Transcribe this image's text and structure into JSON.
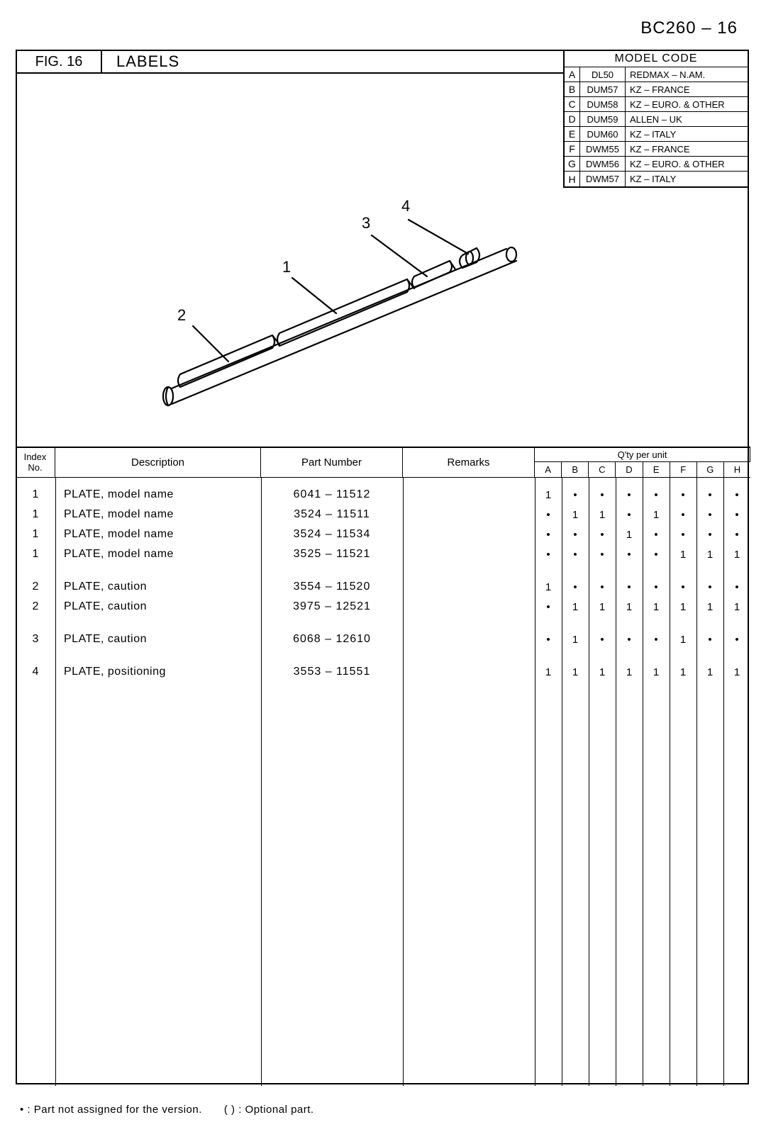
{
  "doc_id": "BC260 –  16",
  "fig_no": "FIG. 16",
  "fig_title": "LABELS",
  "model_code_title": "MODEL  CODE",
  "model_codes": [
    {
      "letter": "A",
      "code": "DL50",
      "desc": "REDMAX – N.AM."
    },
    {
      "letter": "B",
      "code": "DUM57",
      "desc": "KZ – FRANCE"
    },
    {
      "letter": "C",
      "code": "DUM58",
      "desc": "KZ – EURO. & OTHER"
    },
    {
      "letter": "D",
      "code": "DUM59",
      "desc": "ALLEN – UK"
    },
    {
      "letter": "E",
      "code": "DUM60",
      "desc": "KZ – ITALY"
    },
    {
      "letter": "F",
      "code": "DWM55",
      "desc": "KZ – FRANCE"
    },
    {
      "letter": "G",
      "code": "DWM56",
      "desc": "KZ – EURO. & OTHER"
    },
    {
      "letter": "H",
      "code": "DWM57",
      "desc": "KZ – ITALY"
    }
  ],
  "callouts": {
    "c1": "1",
    "c2": "2",
    "c3": "3",
    "c4": "4"
  },
  "table": {
    "headers": {
      "index": "Index\nNo.",
      "desc": "Description",
      "part": "Part  Number",
      "remarks": "Remarks",
      "qty_title": "Q'ty  per  unit",
      "letters": [
        "A",
        "B",
        "C",
        "D",
        "E",
        "F",
        "G",
        "H"
      ]
    },
    "rows": [
      {
        "index": "1",
        "desc": "PLATE, model  name",
        "part": "6041 – 11512",
        "q": [
          "1",
          "•",
          "•",
          "•",
          "•",
          "•",
          "•",
          "•"
        ]
      },
      {
        "index": "1",
        "desc": "PLATE, model  name",
        "part": "3524 – 11511",
        "q": [
          "•",
          "1",
          "1",
          "•",
          "1",
          "•",
          "•",
          "•"
        ]
      },
      {
        "index": "1",
        "desc": "PLATE, model  name",
        "part": "3524 – 11534",
        "q": [
          "•",
          "•",
          "•",
          "1",
          "•",
          "•",
          "•",
          "•"
        ]
      },
      {
        "index": "1",
        "desc": "PLATE, model  name",
        "part": "3525 – 11521",
        "q": [
          "•",
          "•",
          "•",
          "•",
          "•",
          "1",
          "1",
          "1"
        ]
      },
      {
        "gap": true
      },
      {
        "index": "2",
        "desc": "PLATE, caution",
        "part": "3554 – 11520",
        "q": [
          "1",
          "•",
          "•",
          "•",
          "•",
          "•",
          "•",
          "•"
        ]
      },
      {
        "index": "2",
        "desc": "PLATE, caution",
        "part": "3975 – 12521",
        "q": [
          "•",
          "1",
          "1",
          "1",
          "1",
          "1",
          "1",
          "1"
        ]
      },
      {
        "gap": true
      },
      {
        "index": "3",
        "desc": "PLATE, caution",
        "part": "6068 – 12610",
        "q": [
          "•",
          "1",
          "•",
          "•",
          "•",
          "1",
          "•",
          "•"
        ]
      },
      {
        "gap": true
      },
      {
        "index": "4",
        "desc": "PLATE, positioning",
        "part": "3553 – 11551",
        "q": [
          "1",
          "1",
          "1",
          "1",
          "1",
          "1",
          "1",
          "1"
        ]
      }
    ]
  },
  "footnote": "•  :  Part  not  assigned  for  the  version.  ( ) :  Optional  part.",
  "diagram_svg": {
    "stroke": "#000000",
    "stroke_width": 2.2
  }
}
